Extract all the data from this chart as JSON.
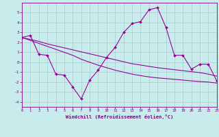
{
  "title": "",
  "xlabel": "Windchill (Refroidissement éolien,°C)",
  "ylabel": "",
  "background_color": "#c8ecec",
  "line_color": "#990099",
  "grid_color": "#b0c8c8",
  "x_data": [
    0,
    1,
    2,
    3,
    4,
    5,
    6,
    7,
    8,
    9,
    10,
    11,
    12,
    13,
    14,
    15,
    16,
    17,
    18,
    19,
    20,
    21,
    22,
    23
  ],
  "y_main": [
    2.5,
    2.7,
    0.8,
    0.7,
    -1.2,
    -1.3,
    -2.5,
    -3.7,
    -1.8,
    -0.8,
    0.5,
    1.5,
    3.0,
    3.9,
    4.1,
    5.3,
    5.5,
    3.5,
    0.7,
    0.7,
    -0.7,
    -0.2,
    -0.2,
    -1.9
  ],
  "y_trend1": [
    2.5,
    2.3,
    2.1,
    1.85,
    1.65,
    1.45,
    1.25,
    1.05,
    0.85,
    0.65,
    0.45,
    0.25,
    0.05,
    -0.15,
    -0.28,
    -0.42,
    -0.55,
    -0.65,
    -0.75,
    -0.85,
    -0.95,
    -1.05,
    -1.2,
    -1.4
  ],
  "y_trend2": [
    2.5,
    2.2,
    1.9,
    1.6,
    1.3,
    1.0,
    0.7,
    0.3,
    0.0,
    -0.3,
    -0.55,
    -0.8,
    -1.0,
    -1.2,
    -1.35,
    -1.48,
    -1.58,
    -1.65,
    -1.72,
    -1.8,
    -1.88,
    -1.95,
    -2.0,
    -2.1
  ],
  "xlim": [
    0,
    23
  ],
  "ylim": [
    -4.5,
    6.0
  ],
  "yticks": [
    -4,
    -3,
    -2,
    -1,
    0,
    1,
    2,
    3,
    4,
    5
  ],
  "xticks": [
    0,
    1,
    2,
    3,
    4,
    5,
    6,
    7,
    8,
    9,
    10,
    11,
    12,
    13,
    14,
    15,
    16,
    17,
    18,
    19,
    20,
    21,
    22,
    23
  ]
}
